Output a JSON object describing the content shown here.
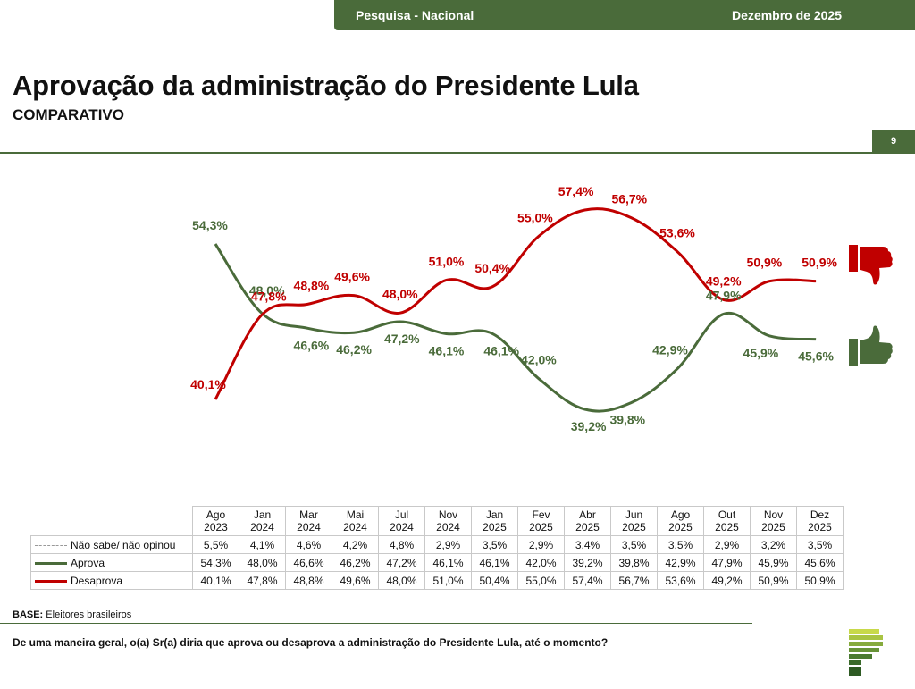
{
  "header": {
    "survey": "Pesquisa - Nacional",
    "date": "Dezembro de 2025"
  },
  "title": "Aprovação da administração do Presidente Lula",
  "subtitle": "COMPARATIVO",
  "page_number": "9",
  "colors": {
    "green": "#4a6b3a",
    "red": "#c00000",
    "gray": "#999999"
  },
  "chart_data": {
    "type": "line",
    "categories": [
      "Ago 2023",
      "Jan 2024",
      "Mar 2024",
      "Mai 2024",
      "Jul 2024",
      "Nov 2024",
      "Jan 2025",
      "Fev 2025",
      "Abr 2025",
      "Jun 2025",
      "Ago 2025",
      "Out 2025",
      "Nov 2025",
      "Dez 2025"
    ],
    "series": [
      {
        "name": "Aprova",
        "color": "#4a6b3a",
        "values": [
          54.3,
          48.0,
          46.6,
          46.2,
          47.2,
          46.1,
          46.1,
          42.0,
          39.2,
          39.8,
          42.9,
          47.9,
          45.9,
          45.6
        ],
        "labels": [
          "54,3%",
          "48,0%",
          "46,6%",
          "46,2%",
          "47,2%",
          "46,1%",
          "46,1%",
          "42,0%",
          "39,2%",
          "39,8%",
          "42,9%",
          "47,9%",
          "45,9%",
          "45,6%"
        ]
      },
      {
        "name": "Desaprova",
        "color": "#c00000",
        "values": [
          40.1,
          47.8,
          48.8,
          49.6,
          48.0,
          51.0,
          50.4,
          55.0,
          57.4,
          56.7,
          53.6,
          49.2,
          50.9,
          50.9
        ],
        "labels": [
          "40,1%",
          "47,8%",
          "48,8%",
          "49,6%",
          "48,0%",
          "51,0%",
          "50,4%",
          "55,0%",
          "57,4%",
          "56,7%",
          "53,6%",
          "49,2%",
          "50,9%",
          "50,9%"
        ]
      }
    ]
  },
  "table": {
    "months": [
      [
        "Ago",
        "2023"
      ],
      [
        "Jan",
        "2024"
      ],
      [
        "Mar",
        "2024"
      ],
      [
        "Mai",
        "2024"
      ],
      [
        "Jul",
        "2024"
      ],
      [
        "Nov",
        "2024"
      ],
      [
        "Jan",
        "2025"
      ],
      [
        "Fev",
        "2025"
      ],
      [
        "Abr",
        "2025"
      ],
      [
        "Jun",
        "2025"
      ],
      [
        "Ago",
        "2025"
      ],
      [
        "Out",
        "2025"
      ],
      [
        "Nov",
        "2025"
      ],
      [
        "Dez",
        "2025"
      ]
    ],
    "rows": [
      {
        "label": "Não sabe/ não opinou",
        "style": "dash",
        "values": [
          "5,5%",
          "4,1%",
          "4,6%",
          "4,2%",
          "4,8%",
          "2,9%",
          "3,5%",
          "2,9%",
          "3,4%",
          "3,5%",
          "3,5%",
          "2,9%",
          "3,2%",
          "3,5%"
        ]
      },
      {
        "label": "Aprova",
        "style": "green",
        "values": [
          "54,3%",
          "48,0%",
          "46,6%",
          "46,2%",
          "47,2%",
          "46,1%",
          "46,1%",
          "42,0%",
          "39,2%",
          "39,8%",
          "42,9%",
          "47,9%",
          "45,9%",
          "45,6%"
        ]
      },
      {
        "label": "Desaprova",
        "style": "red",
        "values": [
          "40,1%",
          "47,8%",
          "48,8%",
          "49,6%",
          "48,0%",
          "51,0%",
          "50,4%",
          "55,0%",
          "57,4%",
          "56,7%",
          "53,6%",
          "49,2%",
          "50,9%",
          "50,9%"
        ]
      }
    ]
  },
  "footer": {
    "base_label": "BASE:",
    "base_text": "Eleitores brasileiros",
    "question": "De uma maneira geral, o(a) Sr(a) diria que aprova ou desaprova a administração do Presidente Lula, até o momento?"
  }
}
